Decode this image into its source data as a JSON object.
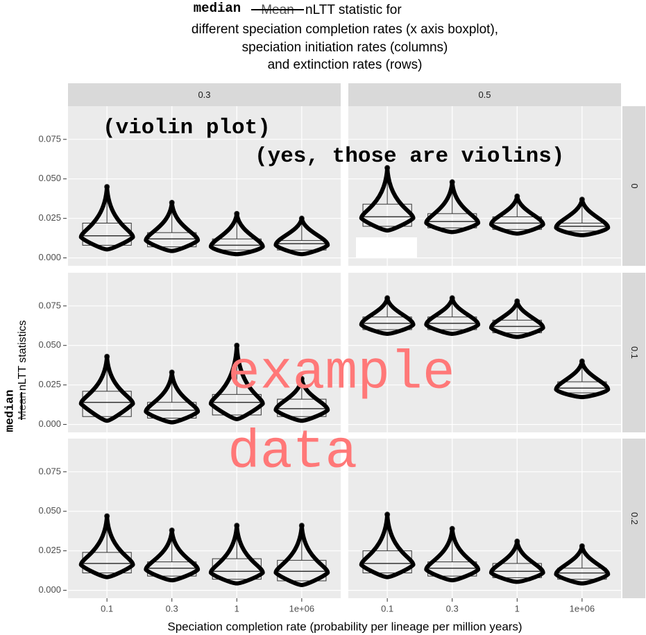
{
  "chart_data": {
    "type": "boxplot",
    "title": {
      "correction": "median",
      "struck": "Mean",
      "lines": [
        "nLTT statistic for",
        "different speciation completion rates (x axis boxplot),",
        "speciation initiation rates (columns)",
        "and extinction rates (rows)"
      ]
    },
    "ylabel": {
      "correction": "median",
      "struck": "Mean",
      "text": "nLTT statistics"
    },
    "xlabel": "Speciation completion rate (probability per lineage per million years)",
    "annotations": {
      "violin_note": "(violin plot)",
      "violin_note_2": "(yes, those are violins)",
      "watermark": [
        "example",
        "data"
      ]
    },
    "categories": [
      "0.1",
      "0.3",
      "1",
      "1e+06"
    ],
    "columns": [
      "0.3",
      "0.5"
    ],
    "ylim": [
      -0.005,
      0.096
    ],
    "yticks": [
      {
        "value": 0,
        "label": "0.000"
      },
      {
        "value": 0.025,
        "label": "0.025"
      },
      {
        "value": 0.05,
        "label": "0.050"
      },
      {
        "value": 0.075,
        "label": "0.075"
      }
    ],
    "grid": true,
    "rows": [
      {
        "label": "0",
        "panels": [
          {
            "q1": [
              0.008,
              0.007,
              0.005,
              0.005
            ],
            "median": [
              0.014,
              0.012,
              0.008,
              0.009
            ],
            "q3": [
              0.022,
              0.016,
              0.012,
              0.011
            ],
            "max": [
              0.045,
              0.035,
              0.028,
              0.025
            ]
          },
          {
            "q1": [
              0.02,
              0.019,
              0.018,
              0.017
            ],
            "median": [
              0.026,
              0.023,
              0.022,
              0.02
            ],
            "q3": [
              0.034,
              0.028,
              0.026,
              0.022
            ],
            "max": [
              0.057,
              0.048,
              0.039,
              0.037
            ]
          }
        ]
      },
      {
        "label": "0.1",
        "panels": [
          {
            "q1": [
              0.005,
              0.004,
              0.006,
              0.005
            ],
            "median": [
              0.014,
              0.009,
              0.014,
              0.01
            ],
            "q3": [
              0.021,
              0.014,
              0.019,
              0.016
            ],
            "max": [
              0.043,
              0.033,
              0.05,
              0.029
            ]
          },
          {
            "q1": [
              0.06,
              0.06,
              0.058,
              0.02
            ],
            "median": [
              0.064,
              0.064,
              0.062,
              0.023
            ],
            "q3": [
              0.068,
              0.068,
              0.066,
              0.027
            ],
            "max": [
              0.08,
              0.08,
              0.078,
              0.04
            ]
          }
        ]
      },
      {
        "label": "0.2",
        "panels": [
          {
            "q1": [
              0.011,
              0.009,
              0.007,
              0.006
            ],
            "median": [
              0.017,
              0.014,
              0.012,
              0.012
            ],
            "q3": [
              0.024,
              0.018,
              0.02,
              0.019
            ],
            "max": [
              0.047,
              0.038,
              0.041,
              0.041
            ]
          },
          {
            "q1": [
              0.011,
              0.009,
              0.008,
              0.007
            ],
            "median": [
              0.017,
              0.014,
              0.012,
              0.011
            ],
            "q3": [
              0.025,
              0.018,
              0.017,
              0.014
            ],
            "max": [
              0.048,
              0.039,
              0.031,
              0.028
            ]
          }
        ]
      }
    ]
  }
}
